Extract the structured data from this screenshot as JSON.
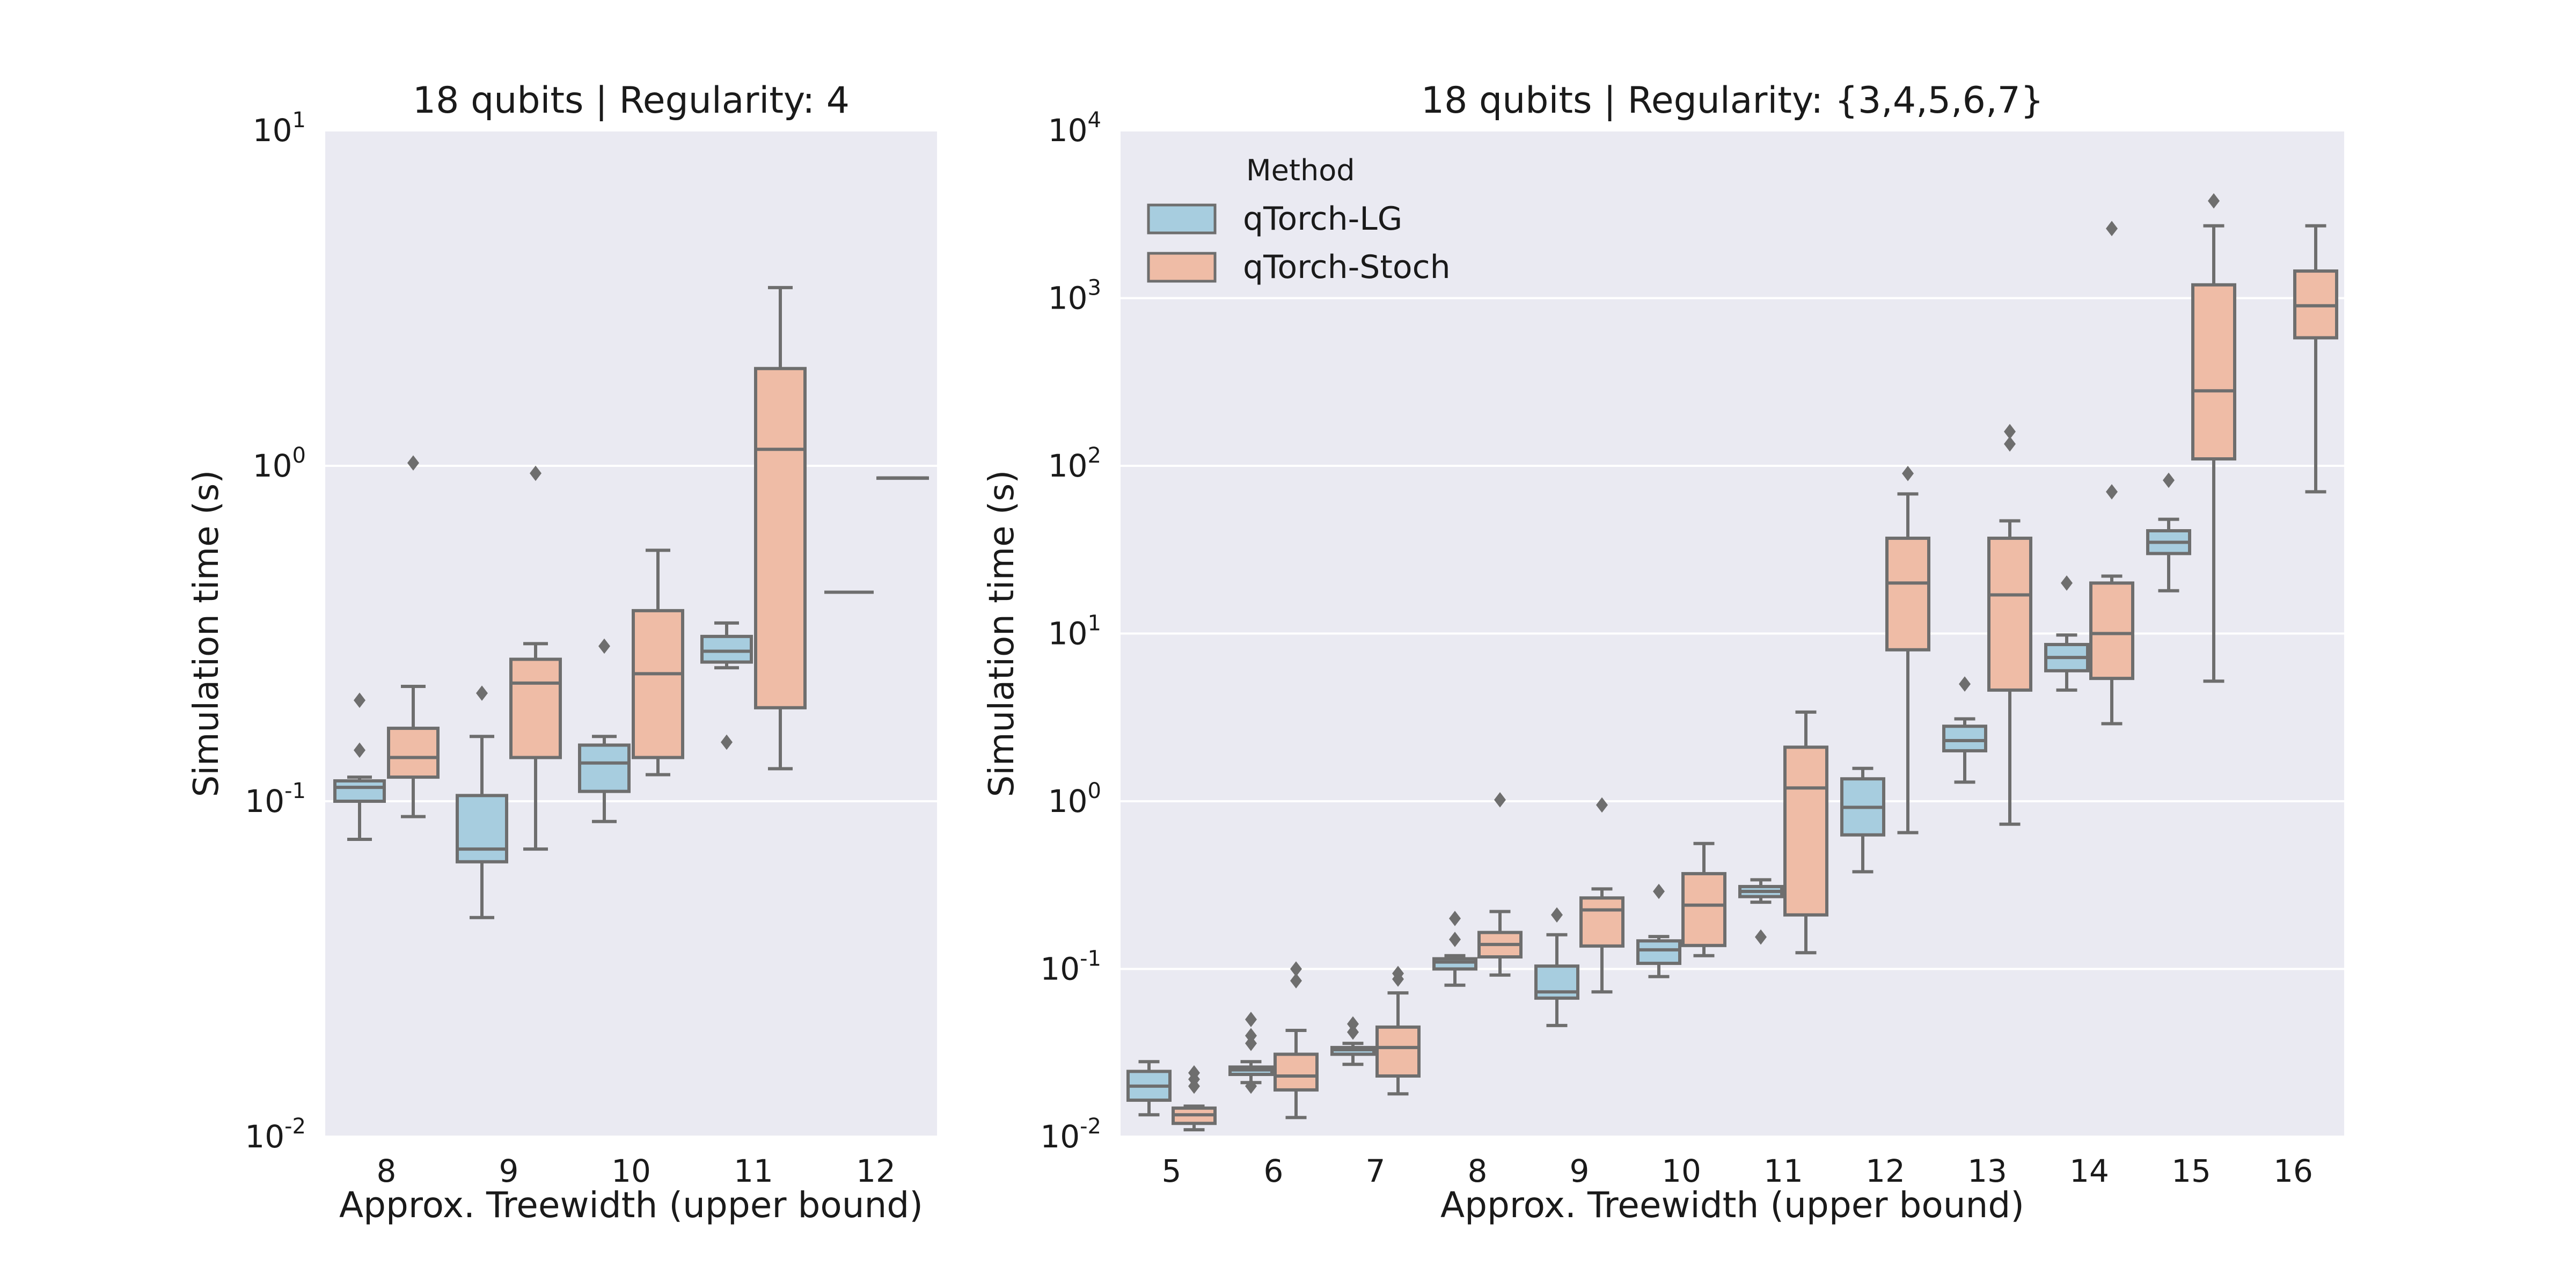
{
  "colors": {
    "panel_bg": "#eaeaf2",
    "grid": "#ffffff",
    "box_stroke": "#6e6e6e",
    "series_lg": "#a7cddf",
    "series_stoch": "#efbca6"
  },
  "chart_data": [
    {
      "type": "box",
      "title": "18 qubits  |  Regularity: 4",
      "xlabel": "Approx. Treewidth (upper bound)",
      "ylabel": "Simulation time (s)",
      "yscale": "log",
      "ylim": [
        0.01,
        10
      ],
      "yticks": [
        {
          "value": 0.01,
          "base": "10",
          "exp": "-2"
        },
        {
          "value": 0.1,
          "base": "10",
          "exp": "-1"
        },
        {
          "value": 1,
          "base": "10",
          "exp": "0"
        },
        {
          "value": 10,
          "base": "10",
          "exp": "1"
        }
      ],
      "categories": [
        "8",
        "9",
        "10",
        "11",
        "12"
      ],
      "series": [
        {
          "name": "qTorch-LG",
          "boxes": [
            {
              "min": 0.077,
              "q1": 0.1,
              "median": 0.11,
              "q3": 0.115,
              "max": 0.118,
              "outliers": [
                0.142,
                0.2
              ]
            },
            {
              "min": 0.045,
              "q1": 0.066,
              "median": 0.072,
              "q3": 0.104,
              "max": 0.156,
              "outliers": [
                0.21
              ]
            },
            {
              "min": 0.087,
              "q1": 0.107,
              "median": 0.13,
              "q3": 0.147,
              "max": 0.156,
              "outliers": [
                0.29
              ]
            },
            {
              "min": 0.25,
              "q1": 0.26,
              "median": 0.28,
              "q3": 0.31,
              "max": 0.34,
              "outliers": [
                0.15
              ]
            },
            null
          ]
        },
        {
          "name": "qTorch-Stoch",
          "boxes": [
            {
              "min": 0.09,
              "q1": 0.118,
              "median": 0.135,
              "q3": 0.165,
              "max": 0.22,
              "outliers": [
                1.02
              ]
            },
            {
              "min": 0.072,
              "q1": 0.135,
              "median": 0.225,
              "q3": 0.265,
              "max": 0.295,
              "outliers": [
                0.95
              ]
            },
            {
              "min": 0.12,
              "q1": 0.135,
              "median": 0.24,
              "q3": 0.37,
              "max": 0.56,
              "outliers": []
            },
            {
              "min": 0.125,
              "q1": 0.19,
              "median": 1.12,
              "q3": 1.95,
              "max": 3.4,
              "outliers": []
            },
            {
              "min": 0.92,
              "q1": 0.92,
              "median": 0.92,
              "q3": 0.92,
              "max": 0.92,
              "outliers": []
            }
          ]
        }
      ],
      "annotations": [
        {
          "category": "12",
          "series": "qTorch-LG",
          "value": 0.42,
          "kind": "single-value line"
        }
      ]
    },
    {
      "type": "box",
      "title": "18 qubits  |  Regularity: {3,4,5,6,7}",
      "xlabel": "Approx. Treewidth (upper bound)",
      "ylabel": "Simulation time (s)",
      "yscale": "log",
      "ylim": [
        0.01,
        10000
      ],
      "yticks": [
        {
          "value": 0.01,
          "base": "10",
          "exp": "-2"
        },
        {
          "value": 0.1,
          "base": "10",
          "exp": "-1"
        },
        {
          "value": 1,
          "base": "10",
          "exp": "0"
        },
        {
          "value": 10,
          "base": "10",
          "exp": "1"
        },
        {
          "value": 100,
          "base": "10",
          "exp": "2"
        },
        {
          "value": 1000,
          "base": "10",
          "exp": "3"
        },
        {
          "value": 10000,
          "base": "10",
          "exp": "4"
        }
      ],
      "categories": [
        "5",
        "6",
        "7",
        "8",
        "9",
        "10",
        "11",
        "12",
        "13",
        "14",
        "15",
        "16"
      ],
      "legend": {
        "title": "Method",
        "entries": [
          "qTorch-LG",
          "qTorch-Stoch"
        ],
        "position": "top-left"
      },
      "series": [
        {
          "name": "qTorch-LG",
          "boxes": [
            {
              "min": 0.0135,
              "q1": 0.0165,
              "median": 0.02,
              "q3": 0.0245,
              "max": 0.028,
              "outliers": []
            },
            {
              "min": 0.021,
              "q1": 0.0235,
              "median": 0.025,
              "q3": 0.026,
              "max": 0.028,
              "outliers": [
                0.02,
                0.036,
                0.04,
                0.05
              ]
            },
            {
              "min": 0.027,
              "q1": 0.031,
              "median": 0.033,
              "q3": 0.034,
              "max": 0.036,
              "outliers": [
                0.042,
                0.047
              ]
            },
            {
              "min": 0.08,
              "q1": 0.1,
              "median": 0.11,
              "q3": 0.115,
              "max": 0.12,
              "outliers": [
                0.15,
                0.2
              ]
            },
            {
              "min": 0.046,
              "q1": 0.067,
              "median": 0.073,
              "q3": 0.104,
              "max": 0.16,
              "outliers": [
                0.21
              ]
            },
            {
              "min": 0.09,
              "q1": 0.108,
              "median": 0.13,
              "q3": 0.147,
              "max": 0.156,
              "outliers": [
                0.29
              ]
            },
            {
              "min": 0.25,
              "q1": 0.27,
              "median": 0.29,
              "q3": 0.31,
              "max": 0.34,
              "outliers": [
                0.155
              ]
            },
            {
              "min": 0.38,
              "q1": 0.63,
              "median": 0.92,
              "q3": 1.36,
              "max": 1.57,
              "outliers": []
            },
            {
              "min": 1.3,
              "q1": 2.0,
              "median": 2.3,
              "q3": 2.8,
              "max": 3.1,
              "outliers": [
                5.0
              ]
            },
            {
              "min": 4.6,
              "q1": 6.0,
              "median": 7.2,
              "q3": 8.6,
              "max": 9.8,
              "outliers": [
                20.0
              ]
            },
            {
              "min": 18.0,
              "q1": 30.0,
              "median": 35.0,
              "q3": 41.0,
              "max": 48.0,
              "outliers": [
                82.0
              ]
            },
            null
          ]
        },
        {
          "name": "qTorch-Stoch",
          "boxes": [
            {
              "min": 0.011,
              "q1": 0.012,
              "median": 0.0135,
              "q3": 0.0148,
              "max": 0.0152,
              "outliers": [
                0.02,
                0.022,
                0.024
              ]
            },
            {
              "min": 0.013,
              "q1": 0.019,
              "median": 0.023,
              "q3": 0.031,
              "max": 0.043,
              "outliers": [
                0.085,
                0.1
              ]
            },
            {
              "min": 0.018,
              "q1": 0.023,
              "median": 0.034,
              "q3": 0.045,
              "max": 0.072,
              "outliers": [
                0.087,
                0.094
              ]
            },
            {
              "min": 0.092,
              "q1": 0.118,
              "median": 0.14,
              "q3": 0.165,
              "max": 0.22,
              "outliers": [
                1.02
              ]
            },
            {
              "min": 0.073,
              "q1": 0.137,
              "median": 0.225,
              "q3": 0.265,
              "max": 0.3,
              "outliers": [
                0.95
              ]
            },
            {
              "min": 0.12,
              "q1": 0.138,
              "median": 0.24,
              "q3": 0.37,
              "max": 0.56,
              "outliers": []
            },
            {
              "min": 0.125,
              "q1": 0.21,
              "median": 1.2,
              "q3": 2.1,
              "max": 3.4,
              "outliers": []
            },
            {
              "min": 0.65,
              "q1": 8.0,
              "median": 20.0,
              "q3": 37.0,
              "max": 68.0,
              "outliers": [
                90.0
              ]
            },
            {
              "min": 0.73,
              "q1": 4.6,
              "median": 17.0,
              "q3": 37.0,
              "max": 47.0,
              "outliers": [
                135.0,
                160.0
              ]
            },
            {
              "min": 2.9,
              "q1": 5.4,
              "median": 10.0,
              "q3": 20.0,
              "max": 22.0,
              "outliers": [
                70.0,
                2600.0
              ]
            },
            {
              "min": 5.2,
              "q1": 110.0,
              "median": 280.0,
              "q3": 1200.0,
              "max": 2700.0,
              "outliers": [
                3800.0
              ]
            },
            {
              "min": 70.0,
              "q1": 580.0,
              "median": 900.0,
              "q3": 1450.0,
              "max": 2700.0,
              "outliers": []
            }
          ]
        }
      ]
    }
  ]
}
